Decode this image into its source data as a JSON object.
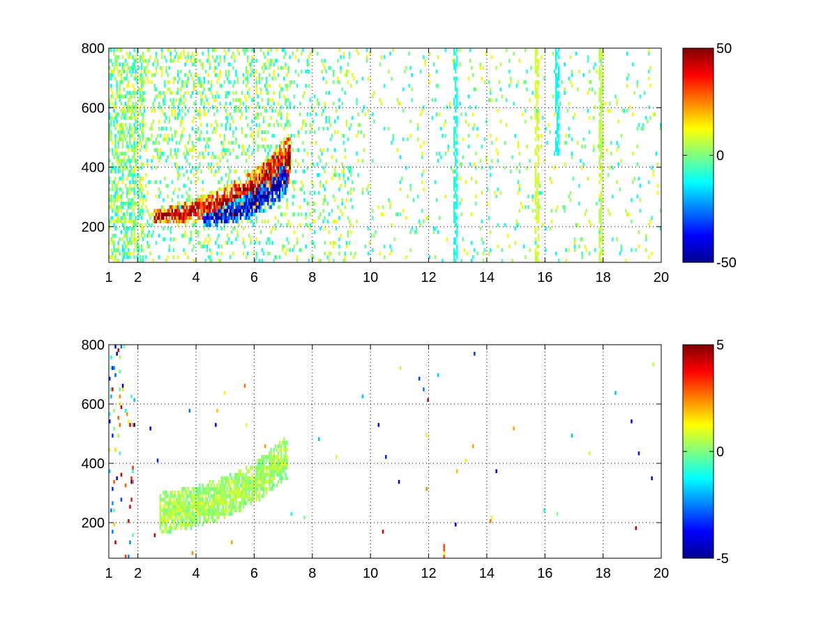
{
  "chart_data": [
    {
      "type": "heatmap",
      "panel": "top",
      "xlim": [
        1,
        20
      ],
      "ylim": [
        80,
        800
      ],
      "xticks": [
        1,
        2,
        4,
        6,
        8,
        10,
        12,
        14,
        16,
        18,
        20
      ],
      "xtick_labels": [
        "1",
        "2",
        "4",
        "6",
        "8",
        "10",
        "12",
        "14",
        "16",
        "18",
        "20"
      ],
      "yticks": [
        200,
        400,
        600,
        800
      ],
      "ytick_labels": [
        "200",
        "400",
        "600",
        "800"
      ],
      "grid": true,
      "grid_style": "dotted",
      "colormap": "jet",
      "clim": [
        -50,
        50
      ],
      "colorbar_ticks": [
        -50,
        0,
        50
      ],
      "colorbar_labels": [
        "-50",
        "0",
        "50"
      ],
      "features": [
        {
          "kind": "ridge",
          "x": [
            2.8,
            3.5,
            4.2,
            5.0,
            5.6,
            6.1,
            6.6,
            7.1
          ],
          "y": [
            230,
            240,
            255,
            275,
            300,
            330,
            370,
            420
          ],
          "value": 45
        },
        {
          "kind": "ridge",
          "x": [
            4.5,
            5.2,
            5.8,
            6.4,
            7.0
          ],
          "y": [
            220,
            240,
            265,
            300,
            350
          ],
          "value": -45
        },
        {
          "kind": "column",
          "x": 12.9,
          "y": [
            80,
            800
          ],
          "value": -10
        },
        {
          "kind": "column",
          "x": 15.7,
          "y": [
            80,
            800
          ],
          "value": 8
        },
        {
          "kind": "column",
          "x": 16.4,
          "y": [
            440,
            800
          ],
          "value": -12
        },
        {
          "kind": "column",
          "x": 17.9,
          "y": [
            80,
            800
          ],
          "value": 6
        }
      ]
    },
    {
      "type": "heatmap",
      "panel": "bottom",
      "xlim": [
        1,
        20
      ],
      "ylim": [
        80,
        800
      ],
      "xticks": [
        1,
        2,
        4,
        6,
        8,
        10,
        12,
        14,
        16,
        18,
        20
      ],
      "xtick_labels": [
        "1",
        "2",
        "4",
        "6",
        "8",
        "10",
        "12",
        "14",
        "16",
        "18",
        "20"
      ],
      "yticks": [
        200,
        400,
        600,
        800
      ],
      "ytick_labels": [
        "200",
        "400",
        "600",
        "800"
      ],
      "grid": true,
      "grid_style": "dotted",
      "colormap": "jet",
      "clim": [
        -5,
        5
      ],
      "colorbar_ticks": [
        -5,
        0,
        5
      ],
      "colorbar_labels": [
        "-5",
        "0",
        "5"
      ],
      "features": [
        {
          "kind": "band",
          "x": [
            3.0,
            4.0,
            5.0,
            6.0,
            7.0
          ],
          "y": [
            230,
            250,
            280,
            330,
            410
          ],
          "value": 0.5
        },
        {
          "kind": "spot",
          "x": 12.5,
          "y": 100,
          "value": 3
        }
      ]
    }
  ]
}
